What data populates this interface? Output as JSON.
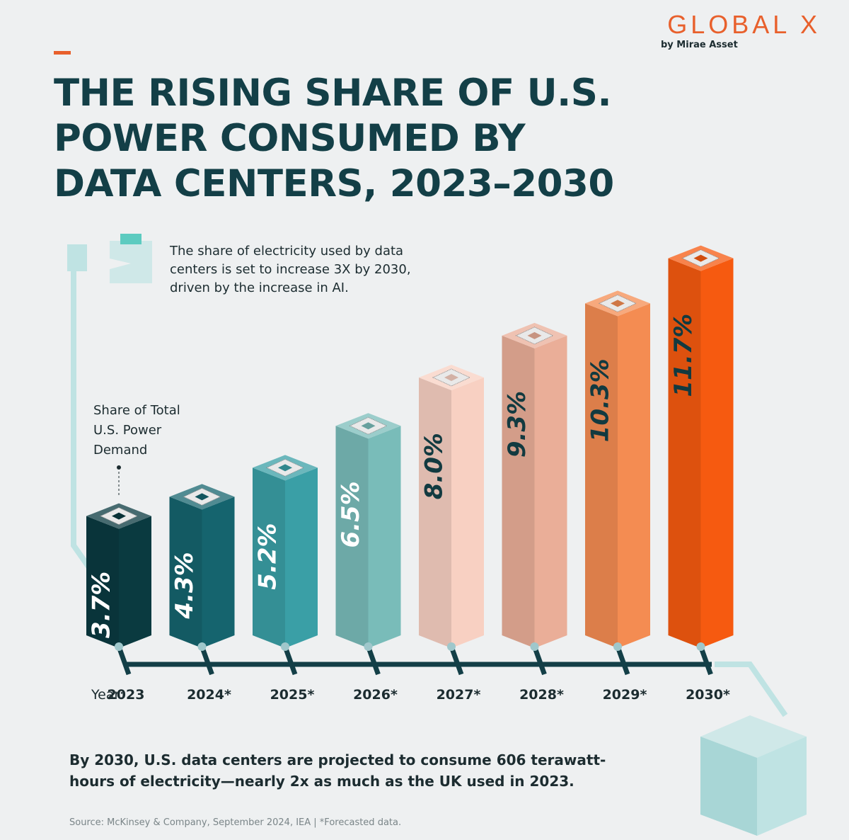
{
  "brand": {
    "name": "GLOBAL X",
    "tagline": "by Mirae Asset"
  },
  "chart_data": {
    "type": "bar3d",
    "title": "THE RISING SHARE OF U.S. POWER CONSUMED BY DATA CENTERS, 2023–2030",
    "annotation": "The share of electricity used by data centers is set to increase 3X by 2030, driven by the increase in AI.",
    "ylabel": "Share of Total U.S. Power Demand",
    "xlabel": "Year:",
    "categories": [
      "2023",
      "2024*",
      "2025*",
      "2026*",
      "2027*",
      "2028*",
      "2029*",
      "2030*"
    ],
    "values": [
      3.7,
      4.3,
      5.2,
      6.5,
      8.0,
      9.3,
      10.3,
      11.7
    ],
    "value_labels": [
      "3.7%",
      "4.3%",
      "5.2%",
      "6.5%",
      "8.0%",
      "9.3%",
      "10.3%",
      "11.7%"
    ],
    "colors": [
      "#0a3a40",
      "#15646e",
      "#3a9fa6",
      "#79bcb9",
      "#f8d0c2",
      "#eaae98",
      "#f48c52",
      "#f65a10"
    ],
    "label_colors": [
      "#ffffff",
      "#ffffff",
      "#ffffff",
      "#ffffff",
      "#123a40",
      "#123a40",
      "#123a40",
      "#123a40"
    ]
  },
  "footnote": "By 2030, U.S. data centers are projected to consume 606 terawatt-hours of electricity—nearly 2x as much as the UK used in 2023.",
  "source": "Source: McKinsey & Company, September 2024, IEA | *Forecasted data."
}
